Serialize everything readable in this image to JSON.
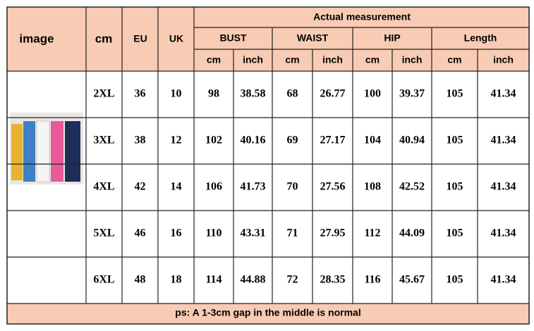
{
  "header": {
    "image": "image",
    "cm": "cm",
    "eu": "EU",
    "uk": "UK",
    "actual": "Actual measurement",
    "groups": [
      "BUST",
      "WAIST",
      "HIP",
      "Length"
    ],
    "units": [
      "cm",
      "inch",
      "cm",
      "inch",
      "cm",
      "inch",
      "cm",
      "inch"
    ]
  },
  "table": {
    "rows": [
      [
        "2XL",
        36,
        10,
        98,
        38.58,
        68,
        26.77,
        100,
        39.37,
        105,
        41.34
      ],
      [
        "3XL",
        38,
        12,
        102,
        40.16,
        69,
        27.17,
        104,
        40.94,
        105,
        41.34
      ],
      [
        "4XL",
        42,
        14,
        106,
        41.73,
        70,
        27.56,
        108,
        42.52,
        105,
        41.34
      ],
      [
        "5XL",
        46,
        16,
        110,
        43.31,
        71,
        27.95,
        112,
        44.09,
        105,
        41.34
      ],
      [
        "6XL",
        48,
        18,
        114,
        44.88,
        72,
        28.35,
        116,
        45.67,
        105,
        41.34
      ]
    ]
  },
  "footer": "ps: A 1-3cm gap in the middle is normal"
}
